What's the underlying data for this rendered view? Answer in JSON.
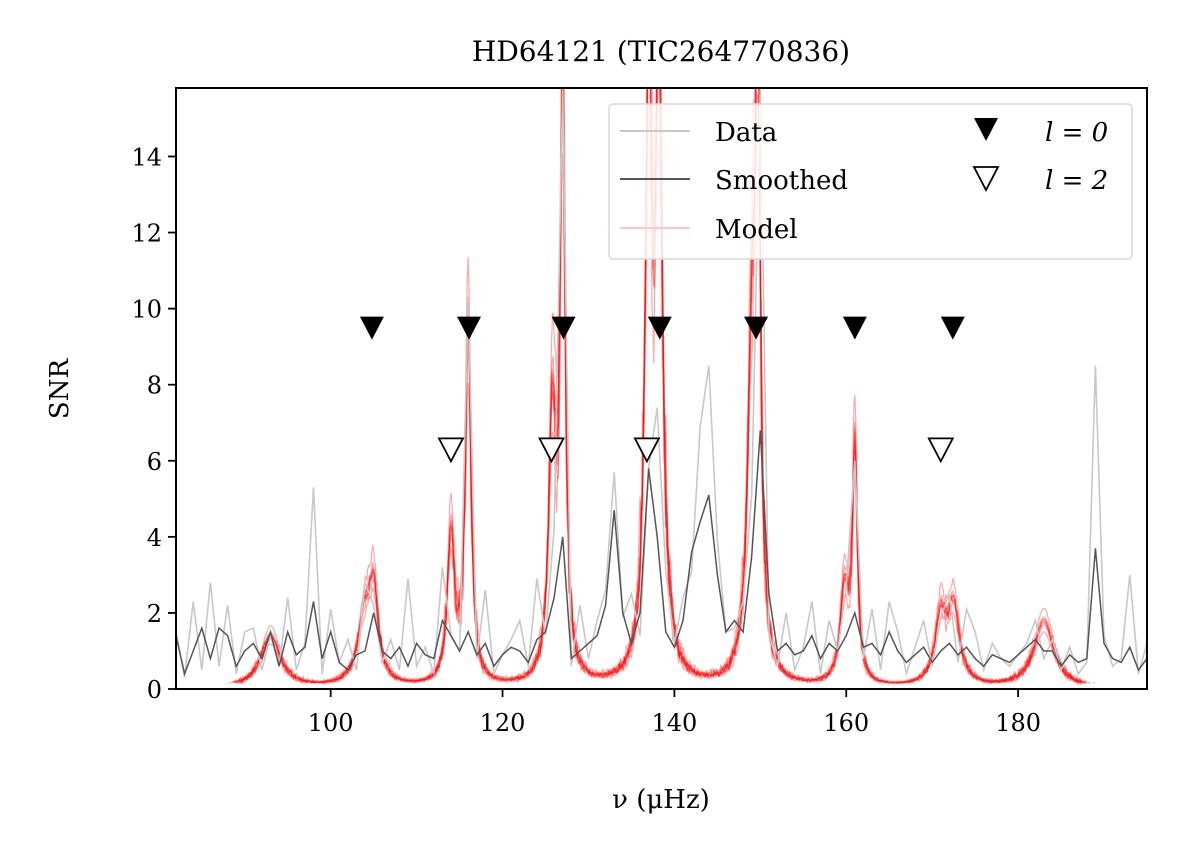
{
  "chart_data": {
    "type": "line",
    "title": "HD64121 (TIC264770836)",
    "xlabel": "ν (μHz)",
    "ylabel": "SNR",
    "xlim": [
      82,
      195
    ],
    "ylim": [
      0,
      15.8
    ],
    "xticks": [
      100,
      120,
      140,
      160,
      180
    ],
    "yticks": [
      0,
      2,
      4,
      6,
      8,
      10,
      12,
      14
    ],
    "grid": false,
    "legend_position": "top-right",
    "legend": [
      {
        "label": "Data",
        "kind": "line",
        "color": "#c8c8c8"
      },
      {
        "label": "Smoothed",
        "kind": "line",
        "color": "#555555"
      },
      {
        "label": "Model",
        "kind": "line",
        "color": "#ffc8c8"
      },
      {
        "label": "l = 0",
        "kind": "marker",
        "marker": "filled-triangle-down"
      },
      {
        "label": "l = 2",
        "kind": "marker",
        "marker": "open-triangle-down"
      }
    ],
    "colors": {
      "data": "#c8c8c8",
      "smoothed": "#555555",
      "model": "#ff0000",
      "marker": "#000000"
    },
    "series": [
      {
        "name": "Data",
        "x": [
          82,
          83,
          84,
          85,
          86,
          87,
          88,
          89,
          90,
          91,
          92,
          93,
          94,
          95,
          96,
          97,
          98,
          99,
          100,
          101,
          102,
          103,
          104,
          105,
          106,
          107,
          108,
          109,
          110,
          111,
          112,
          113,
          114,
          115,
          116,
          117,
          118,
          119,
          120,
          121,
          122,
          123,
          124,
          125,
          126,
          127,
          128,
          129,
          130,
          131,
          132,
          133,
          134,
          135,
          136,
          137,
          138,
          139,
          140,
          141,
          142,
          143,
          144,
          145,
          146,
          147,
          148,
          149,
          150,
          151,
          152,
          153,
          154,
          155,
          156,
          157,
          158,
          159,
          160,
          161,
          162,
          163,
          164,
          165,
          166,
          167,
          168,
          169,
          170,
          171,
          172,
          173,
          174,
          175,
          176,
          177,
          178,
          179,
          180,
          181,
          182,
          183,
          184,
          185,
          186,
          187,
          188,
          189,
          190,
          191,
          192,
          193,
          194,
          195
        ],
        "y": [
          1.5,
          0.3,
          2.3,
          0.5,
          2.8,
          0.6,
          2.2,
          0.4,
          1.5,
          1.6,
          0.5,
          1.4,
          0.6,
          2.4,
          0.5,
          1.2,
          5.3,
          0.4,
          2.1,
          0.7,
          1.3,
          0.5,
          2.8,
          2.2,
          0.7,
          1.3,
          0.5,
          2.9,
          0.6,
          1.1,
          0.4,
          3.2,
          1.4,
          1.0,
          10.3,
          0.8,
          2.6,
          0.4,
          0.9,
          1.3,
          1.8,
          0.6,
          2.9,
          1.4,
          4.2,
          15.8,
          0.6,
          2.2,
          0.8,
          1.8,
          2.6,
          5.7,
          1.9,
          2.5,
          1.4,
          5.8,
          7.4,
          3.1,
          1.2,
          2.4,
          3.1,
          6.9,
          8.5,
          3.9,
          1.5,
          1.6,
          2.3,
          5.1,
          15.8,
          1.5,
          0.6,
          2.0,
          0.5,
          1.1,
          2.3,
          0.4,
          1.8,
          1.0,
          2.7,
          6.0,
          0.8,
          2.1,
          0.5,
          2.3,
          1.5,
          0.4,
          1.1,
          1.8,
          0.6,
          1.9,
          2.5,
          0.7,
          2.1,
          1.5,
          0.5,
          1.2,
          0.8,
          0.6,
          0.9,
          1.2,
          1.8,
          0.8,
          1.3,
          0.5,
          1.1,
          0.4,
          0.7,
          8.5,
          1.4,
          0.6,
          0.8,
          3.0,
          0.4,
          1.2
        ]
      },
      {
        "name": "Smoothed",
        "x": [
          82,
          83,
          84,
          85,
          86,
          87,
          88,
          89,
          90,
          91,
          92,
          93,
          94,
          95,
          96,
          97,
          98,
          99,
          100,
          101,
          102,
          103,
          104,
          105,
          106,
          107,
          108,
          109,
          110,
          111,
          112,
          113,
          114,
          115,
          116,
          117,
          118,
          119,
          120,
          121,
          122,
          123,
          124,
          125,
          126,
          127,
          128,
          129,
          130,
          131,
          132,
          133,
          134,
          135,
          136,
          137,
          138,
          139,
          140,
          141,
          142,
          143,
          144,
          145,
          146,
          147,
          148,
          149,
          150,
          151,
          152,
          153,
          154,
          155,
          156,
          157,
          158,
          159,
          160,
          161,
          162,
          163,
          164,
          165,
          166,
          167,
          168,
          169,
          170,
          171,
          172,
          173,
          174,
          175,
          176,
          177,
          178,
          179,
          180,
          181,
          182,
          183,
          184,
          185,
          186,
          187,
          188,
          189,
          190,
          191,
          192,
          193,
          194,
          195
        ],
        "y": [
          1.4,
          0.4,
          1.0,
          1.6,
          0.8,
          1.6,
          1.4,
          0.6,
          1.0,
          1.2,
          0.8,
          1.5,
          0.6,
          1.5,
          0.9,
          1.1,
          2.3,
          0.8,
          1.5,
          0.7,
          0.5,
          0.9,
          1.0,
          2.0,
          1.0,
          0.8,
          1.1,
          0.6,
          1.2,
          0.9,
          0.8,
          1.8,
          1.4,
          1.0,
          1.5,
          0.9,
          1.2,
          0.6,
          0.9,
          1.1,
          1.0,
          0.7,
          1.3,
          1.5,
          2.4,
          4.0,
          0.8,
          1.0,
          1.2,
          1.4,
          2.2,
          4.7,
          2.0,
          1.2,
          2.0,
          5.8,
          4.0,
          1.5,
          1.1,
          1.8,
          3.6,
          4.4,
          5.1,
          3.0,
          1.5,
          1.8,
          1.5,
          3.5,
          6.8,
          2.5,
          1.0,
          1.2,
          0.9,
          1.0,
          1.4,
          0.8,
          1.2,
          1.0,
          1.4,
          2.0,
          1.1,
          1.2,
          0.9,
          1.5,
          1.0,
          0.7,
          0.9,
          1.1,
          0.7,
          1.0,
          1.2,
          0.9,
          1.1,
          0.8,
          0.6,
          0.9,
          0.8,
          0.7,
          0.9,
          1.1,
          1.3,
          1.0,
          1.0,
          0.6,
          0.9,
          0.7,
          0.8,
          3.7,
          1.2,
          0.8,
          0.7,
          1.1,
          0.5,
          0.8
        ]
      }
    ],
    "model_peaks": [
      {
        "nu": 93.0,
        "height": 1.4,
        "width": 1.4
      },
      {
        "nu": 104.0,
        "height": 1.8,
        "width": 1.0
      },
      {
        "nu": 105.0,
        "height": 2.2,
        "width": 0.6
      },
      {
        "nu": 114.0,
        "height": 4.0,
        "width": 0.5
      },
      {
        "nu": 116.0,
        "height": 9.5,
        "width": 0.4
      },
      {
        "nu": 125.8,
        "height": 7.0,
        "width": 0.5
      },
      {
        "nu": 127.0,
        "height": 15.8,
        "width": 0.35
      },
      {
        "nu": 137.0,
        "height": 15.8,
        "width": 0.45
      },
      {
        "nu": 138.2,
        "height": 15.8,
        "width": 0.5
      },
      {
        "nu": 149.0,
        "height": 8.0,
        "width": 0.6
      },
      {
        "nu": 149.7,
        "height": 15.8,
        "width": 0.35
      },
      {
        "nu": 159.8,
        "height": 2.5,
        "width": 0.6
      },
      {
        "nu": 161.0,
        "height": 6.2,
        "width": 0.35
      },
      {
        "nu": 171.0,
        "height": 1.8,
        "width": 0.8
      },
      {
        "nu": 172.5,
        "height": 2.0,
        "width": 0.8
      },
      {
        "nu": 183.0,
        "height": 1.8,
        "width": 1.4
      }
    ],
    "l0_markers": {
      "nu": [
        104.8,
        116.1,
        127.1,
        138.3,
        149.5,
        161.0,
        172.4
      ],
      "snr": 9.5
    },
    "l2_markers": {
      "nu": [
        114.0,
        125.7,
        136.8,
        171.0
      ],
      "snr": 6.3
    }
  }
}
